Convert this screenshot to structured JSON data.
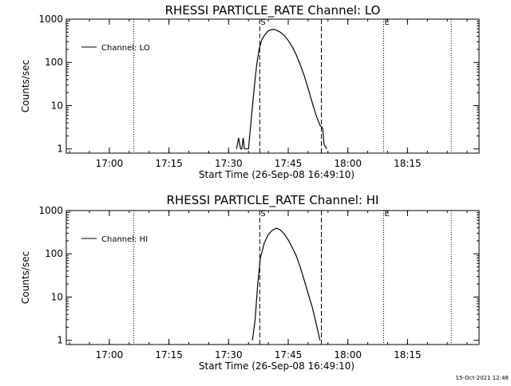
{
  "chart_data": [
    {
      "type": "line",
      "title": "RHESSI PARTICLE_RATE Channel: LO",
      "xlabel": "Start Time (26-Sep-08 16:49:10)",
      "ylabel": "Counts/sec",
      "yscale": "log",
      "ylim": [
        0.8,
        1000
      ],
      "xlim": [
        "16:49:10",
        "18:33:00"
      ],
      "xticks": [
        "17:00",
        "17:15",
        "17:30",
        "17:45",
        "18:00",
        "18:15"
      ],
      "yticks": [
        "1",
        "10",
        "100",
        "1000"
      ],
      "legend": {
        "label": "Channel: LO",
        "position": "top-left"
      },
      "markers": [
        {
          "label": "S",
          "time": "17:37:50",
          "style": "dashed"
        },
        {
          "label": "",
          "time": "17:53:20",
          "style": "dashed"
        },
        {
          "label": "E",
          "time": "18:09:00",
          "style": "dotted"
        }
      ],
      "night_boundaries": [
        "17:06:10",
        "18:26:00"
      ],
      "series": [
        {
          "name": "Channel: LO",
          "x": [
            "17:32:00",
            "17:32:30",
            "17:33:00",
            "17:33:20",
            "17:33:40",
            "17:34:00",
            "17:34:40",
            "17:35:00",
            "17:36:20",
            "17:37:00",
            "17:37:40",
            "17:38:20",
            "17:39:00",
            "17:40:00",
            "17:41:00",
            "17:42:00",
            "17:43:00",
            "17:44:00",
            "17:45:00",
            "17:46:00",
            "17:47:00",
            "17:48:00",
            "17:49:00",
            "17:50:00",
            "17:51:00",
            "17:52:00",
            "17:53:00",
            "17:53:40",
            "17:54:00",
            "17:54:40"
          ],
          "y": [
            1,
            1.8,
            1,
            1,
            1.8,
            1,
            1,
            1,
            20,
            80,
            200,
            330,
            420,
            540,
            580,
            560,
            500,
            420,
            320,
            230,
            150,
            90,
            50,
            25,
            12,
            6,
            3.5,
            3,
            1.3,
            1
          ]
        }
      ]
    },
    {
      "type": "line",
      "title": "RHESSI PARTICLE_RATE Channel: HI",
      "xlabel": "Start Time (26-Sep-08 16:49:10)",
      "ylabel": "Counts/sec",
      "yscale": "log",
      "ylim": [
        0.8,
        1000
      ],
      "xlim": [
        "16:49:10",
        "18:33:00"
      ],
      "xticks": [
        "17:00",
        "17:15",
        "17:30",
        "17:45",
        "18:00",
        "18:15"
      ],
      "yticks": [
        "1",
        "10",
        "100",
        "1000"
      ],
      "legend": {
        "label": "Channel: HI",
        "position": "top-left"
      },
      "markers": [
        {
          "label": "S",
          "time": "17:37:50",
          "style": "dashed"
        },
        {
          "label": "",
          "time": "17:53:20",
          "style": "dashed"
        },
        {
          "label": "E",
          "time": "18:09:00",
          "style": "dotted"
        }
      ],
      "night_boundaries": [
        "17:06:10",
        "18:26:00"
      ],
      "series": [
        {
          "name": "Channel: HI",
          "x": [
            "17:36:00",
            "17:36:40",
            "17:37:20",
            "17:38:00",
            "17:39:00",
            "17:40:00",
            "17:41:00",
            "17:42:00",
            "17:43:00",
            "17:44:00",
            "17:45:00",
            "17:46:00",
            "17:47:00",
            "17:48:00",
            "17:49:00",
            "17:50:00",
            "17:51:00",
            "17:52:00",
            "17:53:00"
          ],
          "y": [
            1,
            3,
            20,
            80,
            180,
            280,
            350,
            390,
            360,
            290,
            210,
            140,
            90,
            50,
            25,
            12,
            6,
            2.5,
            1
          ]
        }
      ]
    }
  ],
  "footer": {
    "timestamp": "15-Oct-2021 12:48"
  }
}
